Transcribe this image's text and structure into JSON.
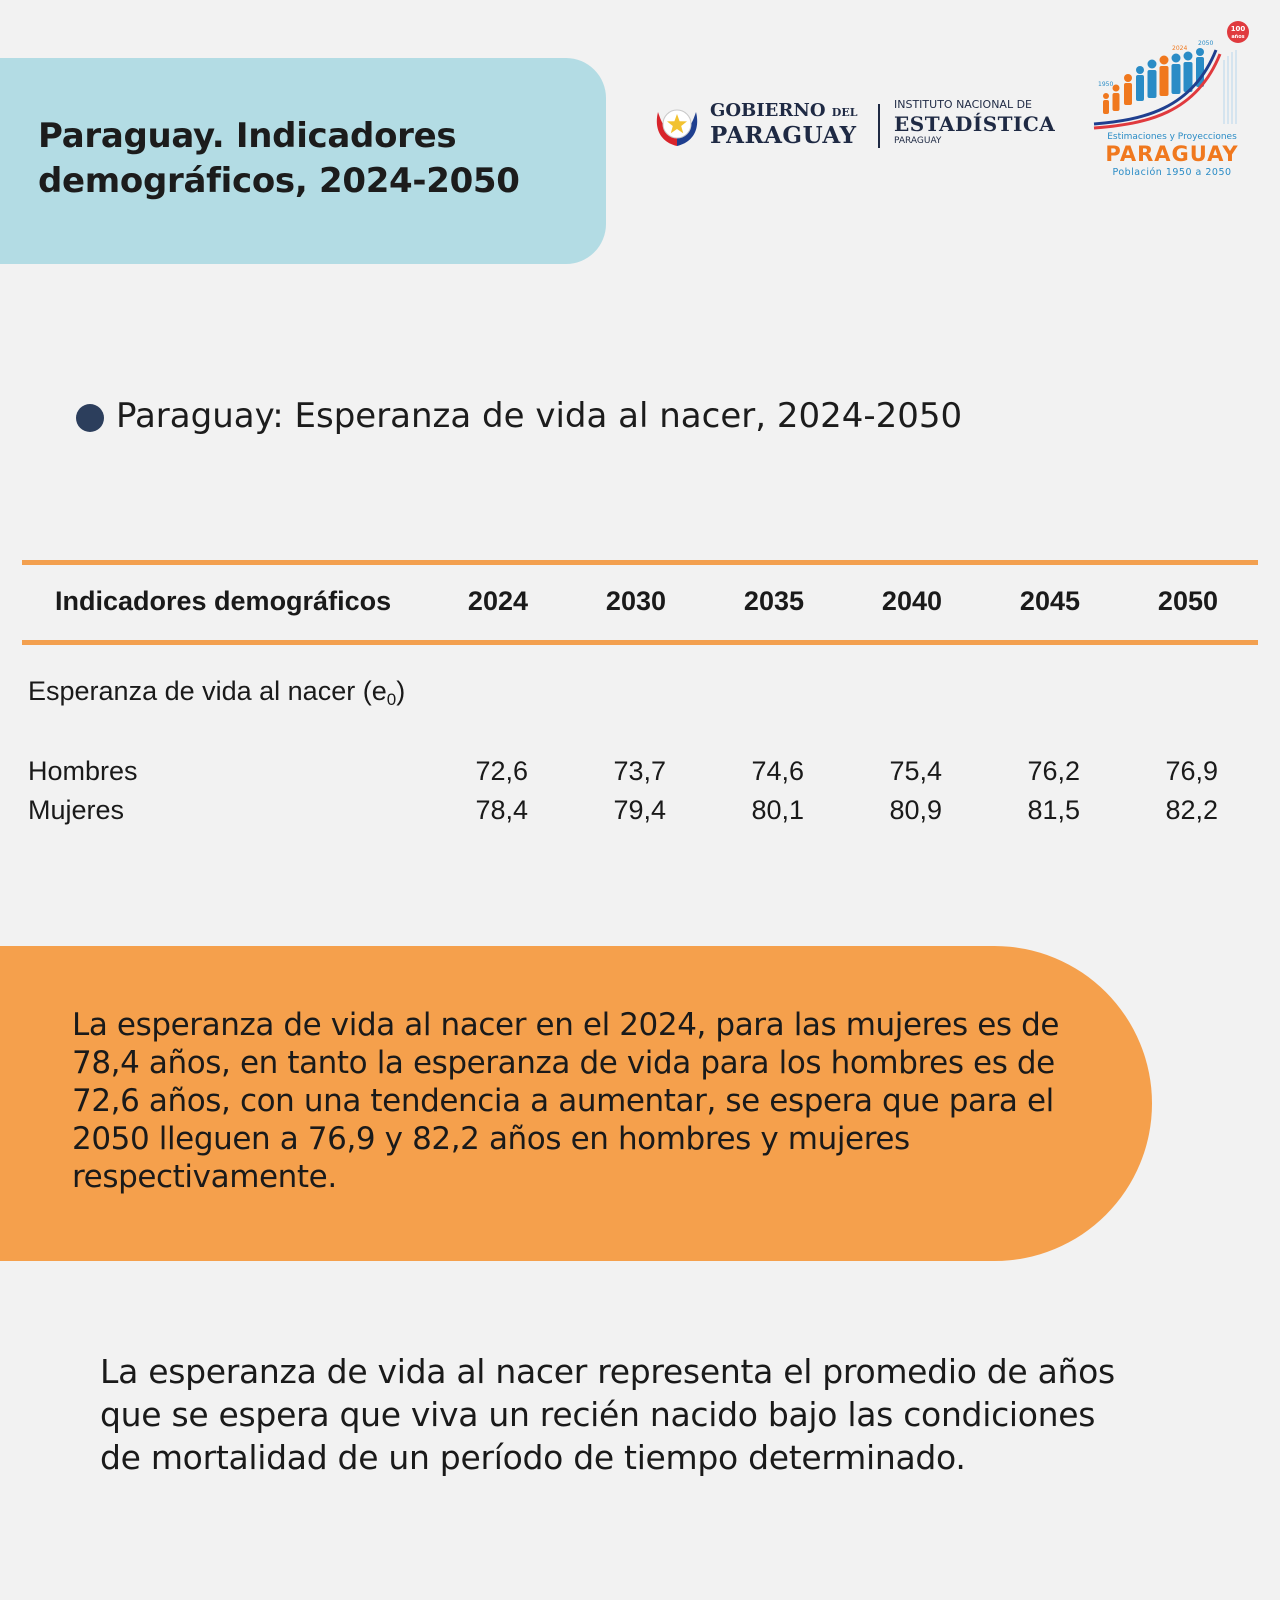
{
  "header": {
    "title_line1": "Paraguay. Indicadores",
    "title_line2": "demográficos, 2024-2050"
  },
  "logos": {
    "gobierno": {
      "line1": "GOBIERNO",
      "line1_small": "DEL",
      "line2": "PARAGUAY"
    },
    "ine": {
      "line1": "INSTITUTO NACIONAL DE",
      "line2": "ESTADÍSTICA",
      "line3": "PARAGUAY"
    },
    "proyecciones": {
      "badge": "100 años",
      "year_start": "1950",
      "year_mid": "2024",
      "year_end": "2050",
      "subtitle": "Estimaciones y Proyecciones",
      "brand": "PARAGUAY",
      "tagline": "Población 1950 a 2050"
    }
  },
  "section": {
    "heading": "Paraguay: Esperanza de vida al nacer, 2024-2050"
  },
  "table": {
    "header_label": "Indicadores demográficos",
    "years": [
      "2024",
      "2030",
      "2035",
      "2040",
      "2045",
      "2050"
    ],
    "indicator_label": "Esperanza de vida  al nacer (e",
    "indicator_sub": "0",
    "indicator_close": ")",
    "rows": [
      {
        "label": "Hombres",
        "values": [
          "72,6",
          "73,7",
          "74,6",
          "75,4",
          "76,2",
          "76,9"
        ]
      },
      {
        "label": "Mujeres",
        "values": [
          "78,4",
          "79,4",
          "80,1",
          "80,9",
          "81,5",
          "82,2"
        ]
      }
    ]
  },
  "note": {
    "text": "La esperanza de vida al nacer en el 2024, para las mujeres es de 78,4 años, en tanto la esperanza de vida para los hombres es de 72,6 años, con una tendencia a aumentar, se espera que para el 2050 lleguen a 76,9 y 82,2 años en hombres y mujeres respectivamente."
  },
  "definition": {
    "text": "La esperanza de vida al nacer representa el promedio de años que se espera que viva un recién nacido bajo las condiciones de mortalidad de un período de tiempo determinado."
  },
  "colors": {
    "background": "#f2f2f2",
    "title_box": "#b3dce4",
    "accent_orange": "#f5a04c",
    "bullet": "#2c3e5c",
    "brand_orange": "#f0781e",
    "brand_blue": "#2a8cc6",
    "brand_red": "#e03a3e"
  }
}
